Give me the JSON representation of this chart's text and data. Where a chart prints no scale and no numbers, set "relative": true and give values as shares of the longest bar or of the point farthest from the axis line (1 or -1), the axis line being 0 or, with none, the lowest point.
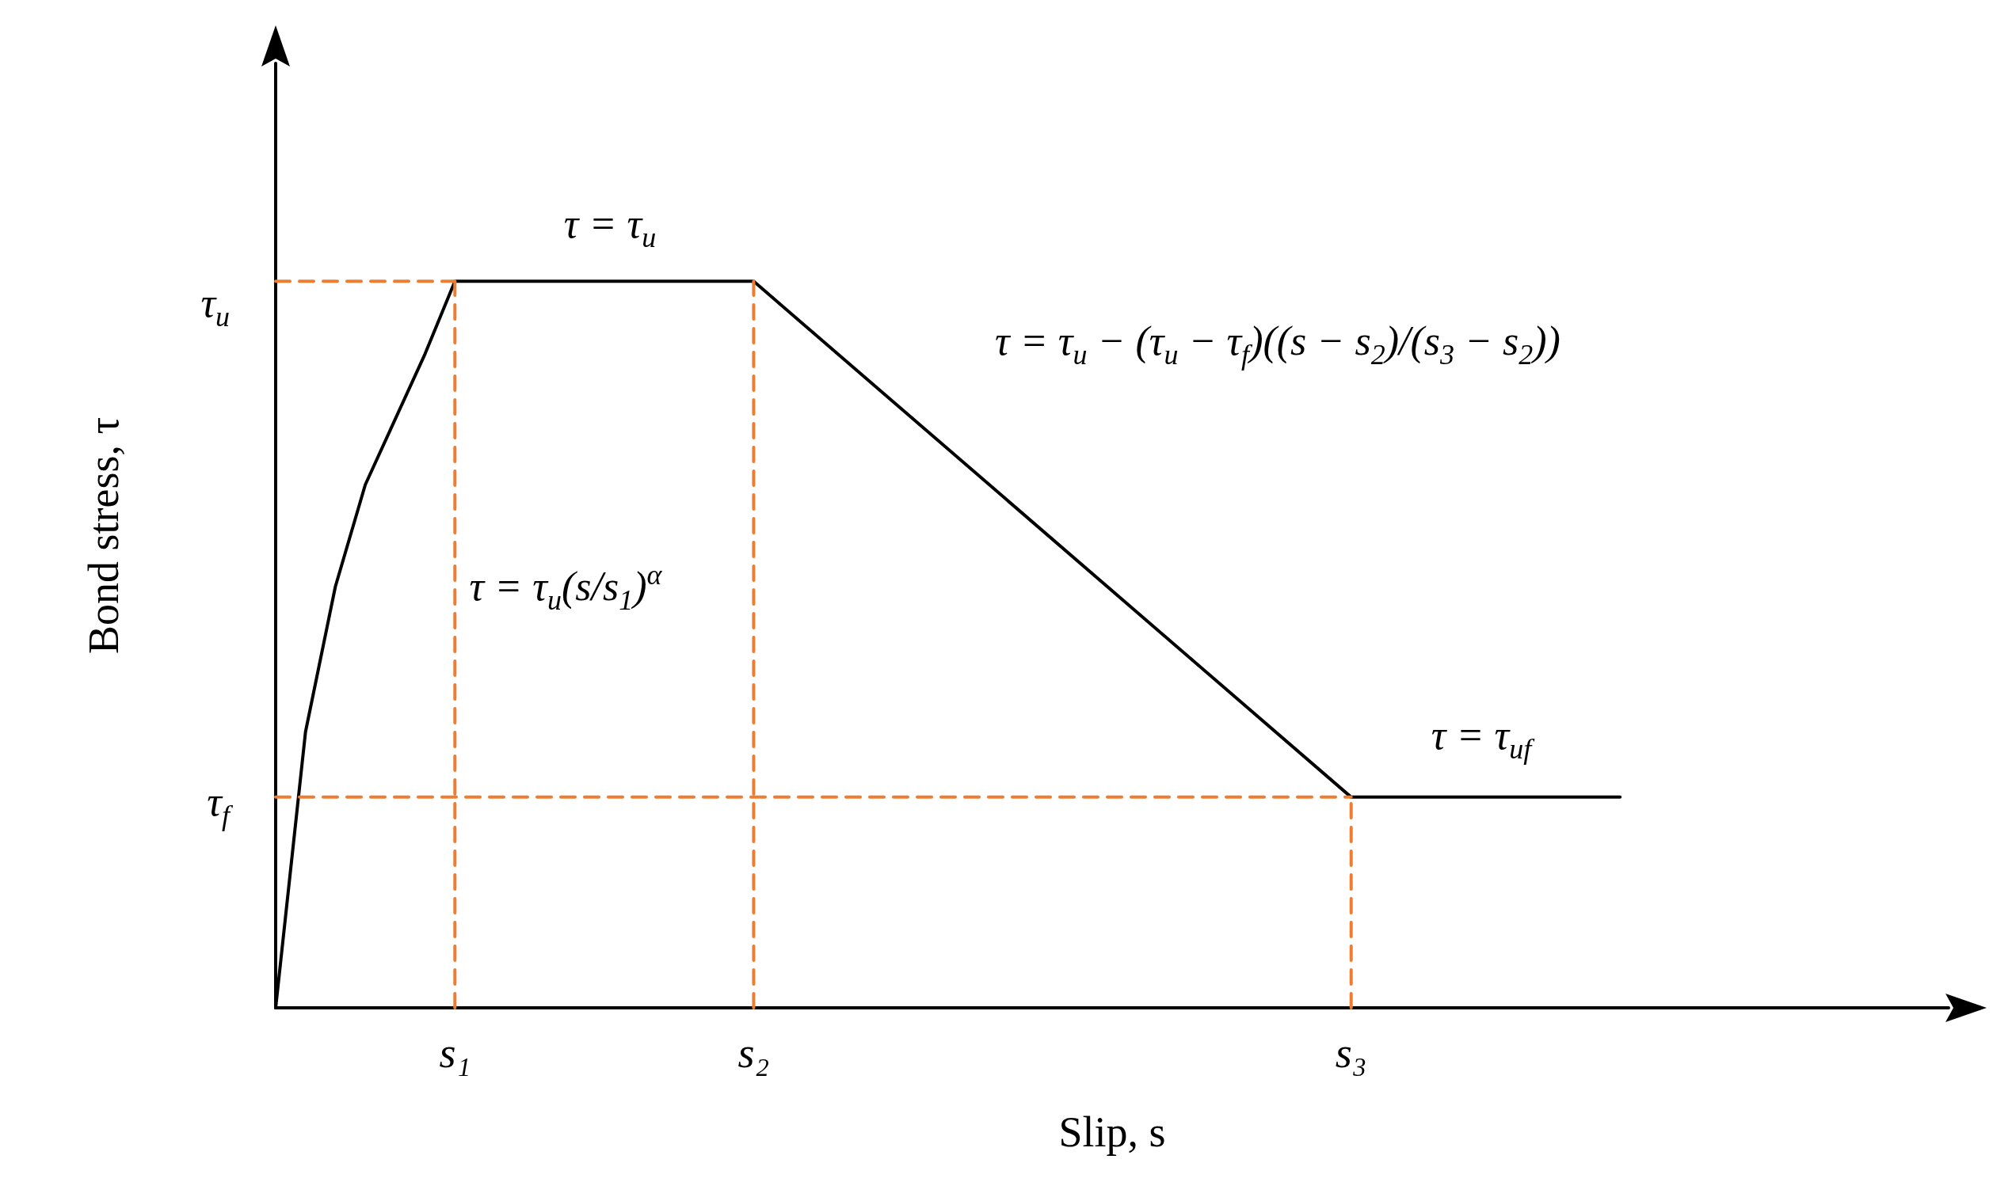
{
  "chart_data": {
    "type": "line",
    "xlabel": "Slip, s",
    "ylabel": "Bond stress, τ",
    "relative": true,
    "marker": "none",
    "categories": [
      null,
      null,
      null,
      null,
      null,
      null,
      "s₁",
      null,
      null,
      null,
      null,
      null,
      null,
      null,
      null,
      null,
      "s₂",
      null,
      null,
      null,
      null,
      null,
      null,
      null,
      null,
      null,
      null,
      null,
      null,
      null,
      null,
      null,
      null,
      null,
      null,
      null,
      "s₃",
      null,
      null,
      null,
      null,
      null,
      null,
      null,
      null,
      null,
      null,
      null,
      null,
      null,
      null,
      null,
      null,
      null,
      null,
      null,
      null
    ],
    "series": [
      {
        "color": "#000000",
        "line_style": "solid",
        "values": [
          0,
          0.38,
          0.58,
          0.72,
          0.81,
          0.9,
          1,
          null,
          null,
          null,
          null,
          null,
          null,
          null,
          null,
          null,
          1,
          null,
          null,
          null,
          null,
          null,
          null,
          null,
          null,
          null,
          null,
          null,
          null,
          null,
          null,
          null,
          null,
          null,
          null,
          null,
          0.29,
          null,
          null,
          null,
          null,
          null,
          null,
          null,
          null,
          0.29,
          null,
          null,
          null,
          null,
          null,
          null,
          null,
          null,
          null,
          null,
          null
        ]
      },
      {
        "color": "#ed7d31",
        "line_style": "dashed",
        "values": [
          1,
          null,
          null,
          null,
          null,
          null,
          1,
          null,
          null,
          null,
          null,
          null,
          null,
          null,
          null,
          null,
          null,
          null,
          null,
          null,
          null,
          null,
          null,
          null,
          null,
          null,
          null,
          null,
          null,
          null,
          null,
          null,
          null,
          null,
          null,
          null,
          null,
          null,
          null,
          null,
          null,
          null,
          null,
          null,
          null,
          null,
          null,
          null,
          null,
          null,
          null,
          null,
          null,
          null,
          null,
          null,
          null
        ]
      },
      {
        "color": "#ed7d31",
        "line_style": "dashed",
        "values": [
          0.29,
          null,
          null,
          null,
          null,
          null,
          null,
          null,
          null,
          null,
          null,
          null,
          null,
          null,
          null,
          null,
          null,
          null,
          null,
          null,
          null,
          null,
          null,
          null,
          null,
          null,
          null,
          null,
          null,
          null,
          null,
          null,
          null,
          null,
          null,
          null,
          0.29,
          null,
          null,
          null,
          null,
          null,
          null,
          null,
          null,
          null,
          null,
          null,
          null,
          null,
          null,
          null,
          null,
          null,
          null,
          null,
          null
        ]
      },
      {
        "color": "#ed7d31",
        "line_style": "dashed",
        "x": [
          "s₁",
          "s₁"
        ],
        "values": [
          0,
          1
        ]
      },
      {
        "color": "#ed7d31",
        "line_style": "dashed",
        "x": [
          "s₂",
          "s₂"
        ],
        "values": [
          0,
          1
        ]
      },
      {
        "color": "#ed7d31",
        "line_style": "dashed",
        "x": [
          "s₃",
          "s₃"
        ],
        "values": [
          0,
          0.29
        ]
      }
    ],
    "annotations": [
      "τ$_{u}$",
      "τ$_{f}$",
      "τ = τ$_{u}$",
      "τ = τ$_{u}$ − (τ$_{u}$ − τ$_{f}$)((s − s$_{2}$)/(s$_{3}$ − s$_{2}$))",
      "τ = τ$_{u}$(s/s$_{1}$)$^{α}$",
      "τ = τ$_{uf}$"
    ]
  }
}
